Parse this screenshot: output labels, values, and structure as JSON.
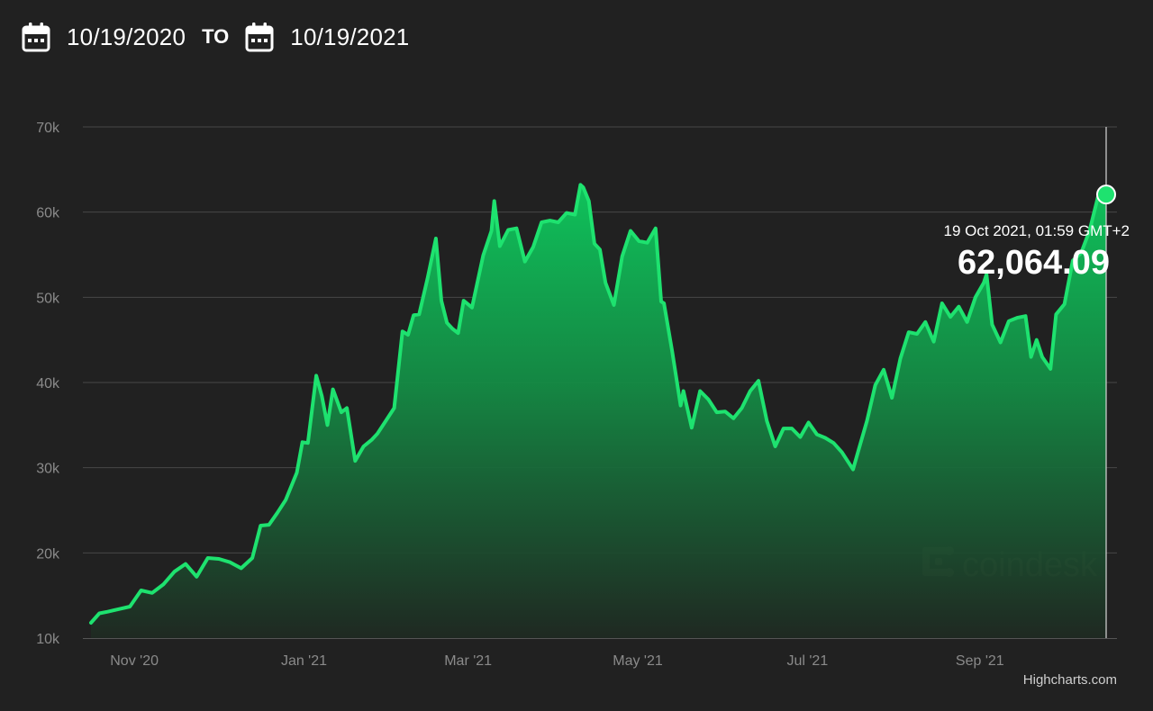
{
  "header": {
    "start_date": "10/19/2020",
    "separator": "TO",
    "end_date": "10/19/2021",
    "calendar_icon": "calendar-icon"
  },
  "tooltip": {
    "date": "19 Oct 2021, 01:59 GMT+2",
    "value": "62,064.09"
  },
  "watermark": "coindesk",
  "credits": "Highcharts.com",
  "colors": {
    "background": "#212121",
    "line": "#1ee26f",
    "area_top": "#0fc25b",
    "gridline": "#444444"
  },
  "chart_data": {
    "type": "area",
    "title": "",
    "xlabel": "",
    "ylabel": "",
    "x_range": [
      "2020-10-19",
      "2021-10-19"
    ],
    "ylim": [
      10000,
      70000
    ],
    "y_ticks": [
      10000,
      20000,
      30000,
      40000,
      50000,
      60000,
      70000
    ],
    "y_tick_labels": [
      "10k",
      "20k",
      "30k",
      "40k",
      "50k",
      "60k",
      "70k"
    ],
    "x_ticks": [
      "2020-11-01",
      "2021-01-01",
      "2021-03-01",
      "2021-05-01",
      "2021-07-01",
      "2021-09-01"
    ],
    "x_tick_labels": [
      "Nov '20",
      "Jan '21",
      "Mar '21",
      "May '21",
      "Jul '21",
      "Sep '21"
    ],
    "grid": true,
    "legend": "none",
    "highlight": {
      "x": "2021-10-19",
      "y": 62064.09
    },
    "series": [
      {
        "x": [
          "2020-10-19",
          "2020-10-22",
          "2020-10-25",
          "2020-10-29",
          "2020-11-02",
          "2020-11-06",
          "2020-11-10",
          "2020-11-14",
          "2020-11-18",
          "2020-11-22",
          "2020-11-26",
          "2020-11-30",
          "2020-12-04",
          "2020-12-08",
          "2020-12-12",
          "2020-12-16",
          "2020-12-19",
          "2020-12-22",
          "2020-12-25",
          "2020-12-28",
          "2021-01-01",
          "2021-01-03",
          "2021-01-05",
          "2021-01-08",
          "2021-01-10",
          "2021-01-12",
          "2021-01-14",
          "2021-01-17",
          "2021-01-19",
          "2021-01-22",
          "2021-01-25",
          "2021-01-28",
          "2021-01-30",
          "2021-02-02",
          "2021-02-05",
          "2021-02-08",
          "2021-02-10",
          "2021-02-12",
          "2021-02-14",
          "2021-02-17",
          "2021-02-20",
          "2021-02-22",
          "2021-02-24",
          "2021-02-26",
          "2021-02-28",
          "2021-03-02",
          "2021-03-05",
          "2021-03-09",
          "2021-03-12",
          "2021-03-13",
          "2021-03-15",
          "2021-03-18",
          "2021-03-21",
          "2021-03-24",
          "2021-03-27",
          "2021-03-30",
          "2021-04-02",
          "2021-04-05",
          "2021-04-08",
          "2021-04-11",
          "2021-04-13",
          "2021-04-14",
          "2021-04-16",
          "2021-04-18",
          "2021-04-20",
          "2021-04-22",
          "2021-04-25",
          "2021-04-28",
          "2021-05-01",
          "2021-05-04",
          "2021-05-07",
          "2021-05-10",
          "2021-05-12",
          "2021-05-13",
          "2021-05-16",
          "2021-05-19",
          "2021-05-20",
          "2021-05-23",
          "2021-05-26",
          "2021-05-29",
          "2021-06-01",
          "2021-06-04",
          "2021-06-07",
          "2021-06-10",
          "2021-06-13",
          "2021-06-16",
          "2021-06-19",
          "2021-06-22",
          "2021-06-25",
          "2021-06-28",
          "2021-07-01",
          "2021-07-04",
          "2021-07-07",
          "2021-07-10",
          "2021-07-13",
          "2021-07-16",
          "2021-07-20",
          "2021-07-22",
          "2021-07-25",
          "2021-07-28",
          "2021-07-31",
          "2021-08-03",
          "2021-08-06",
          "2021-08-09",
          "2021-08-12",
          "2021-08-15",
          "2021-08-18",
          "2021-08-21",
          "2021-08-24",
          "2021-08-27",
          "2021-08-30",
          "2021-09-02",
          "2021-09-05",
          "2021-09-06",
          "2021-09-08",
          "2021-09-11",
          "2021-09-14",
          "2021-09-17",
          "2021-09-20",
          "2021-09-22",
          "2021-09-24",
          "2021-09-26",
          "2021-09-29",
          "2021-10-01",
          "2021-10-04",
          "2021-10-07",
          "2021-10-10",
          "2021-10-13",
          "2021-10-16",
          "2021-10-19"
        ],
        "y": [
          11800,
          12900,
          13100,
          13400,
          13700,
          15600,
          15300,
          16300,
          17800,
          18700,
          17200,
          19400,
          19300,
          18900,
          18200,
          19400,
          23200,
          23300,
          24700,
          26200,
          29400,
          33000,
          32900,
          40800,
          38400,
          35000,
          39200,
          36500,
          37000,
          30800,
          32500,
          33300,
          34000,
          35500,
          37000,
          46000,
          45600,
          47900,
          48000,
          52200,
          56900,
          49600,
          47000,
          46300,
          45800,
          49600,
          48800,
          54900,
          57800,
          61300,
          56000,
          57900,
          58100,
          54200,
          55900,
          58800,
          59000,
          58800,
          59900,
          59700,
          63200,
          62900,
          61300,
          56300,
          55600,
          51700,
          49100,
          54800,
          57800,
          56600,
          56400,
          58100,
          49500,
          49300,
          43600,
          37300,
          39000,
          34700,
          39000,
          38000,
          36500,
          36600,
          35800,
          37000,
          39000,
          40200,
          35500,
          32500,
          34600,
          34600,
          33600,
          35300,
          33900,
          33500,
          32900,
          31800,
          29800,
          32100,
          35500,
          39700,
          41500,
          38200,
          42800,
          45900,
          45700,
          47100,
          44800,
          49300,
          47700,
          48900,
          47100,
          50000,
          51700,
          52700,
          46800,
          44700,
          47200,
          47600,
          47800,
          43000,
          45000,
          43000,
          41600,
          48000,
          49200,
          54300,
          55200,
          57800,
          61700,
          62064.09
        ]
      }
    ]
  }
}
